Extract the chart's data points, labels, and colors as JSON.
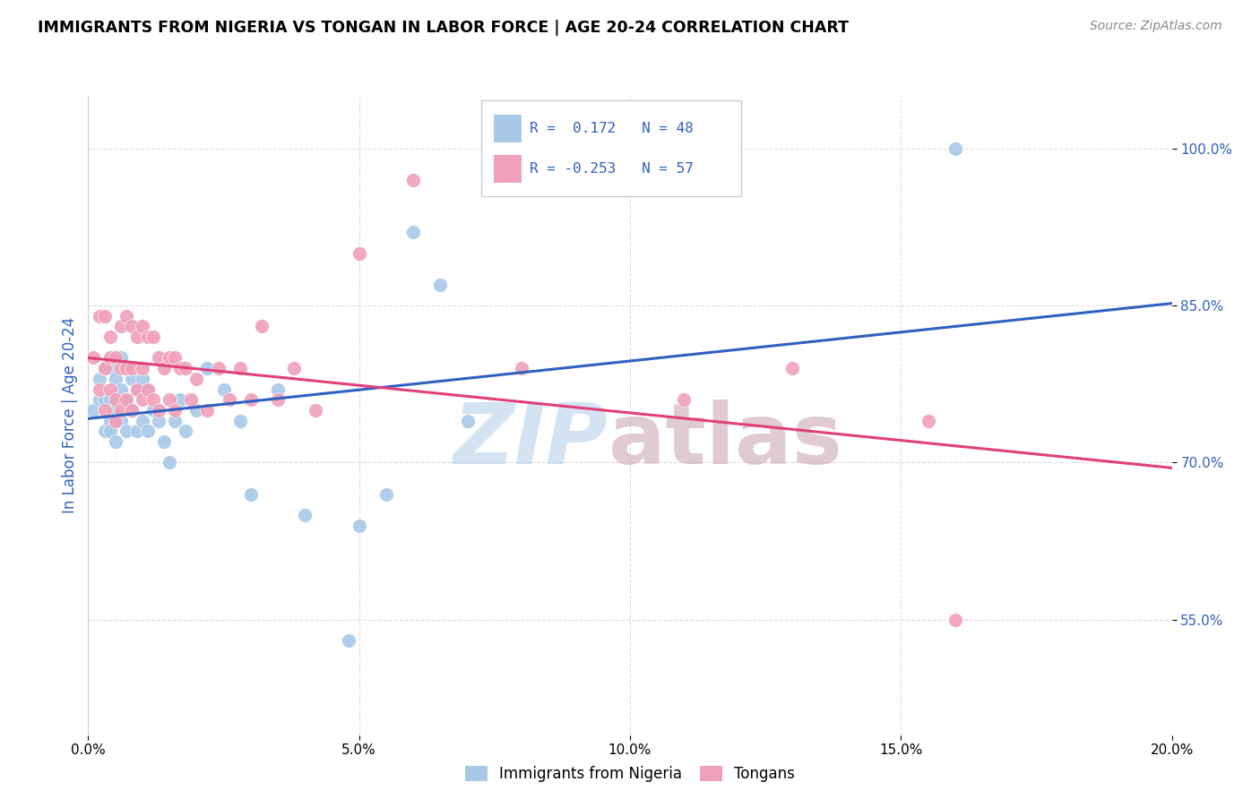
{
  "title": "IMMIGRANTS FROM NIGERIA VS TONGAN IN LABOR FORCE | AGE 20-24 CORRELATION CHART",
  "source": "Source: ZipAtlas.com",
  "ylabel": "In Labor Force | Age 20-24",
  "ylabel_ticks": [
    "55.0%",
    "70.0%",
    "85.0%",
    "100.0%"
  ],
  "ylabel_tick_vals": [
    0.55,
    0.7,
    0.85,
    1.0
  ],
  "xmin": 0.0,
  "xmax": 0.2,
  "ymin": 0.44,
  "ymax": 1.05,
  "legend_R_nigeria": "0.172",
  "legend_N_nigeria": "48",
  "legend_R_tongan": "-0.253",
  "legend_N_tongan": "57",
  "color_nigeria": "#a8c8e8",
  "color_tongan": "#f0a0b8",
  "color_line_nigeria": "#3060c0",
  "color_line_tongan": "#e0407a",
  "color_blue": "#3060c0",
  "nigeria_line_x": [
    0.0,
    0.2
  ],
  "nigeria_line_y": [
    0.742,
    0.852
  ],
  "tongan_line_x": [
    0.0,
    0.2
  ],
  "tongan_line_y": [
    0.8,
    0.695
  ],
  "nigeria_x": [
    0.001,
    0.002,
    0.002,
    0.003,
    0.003,
    0.003,
    0.004,
    0.004,
    0.004,
    0.004,
    0.005,
    0.005,
    0.005,
    0.006,
    0.006,
    0.006,
    0.007,
    0.007,
    0.007,
    0.008,
    0.008,
    0.009,
    0.009,
    0.01,
    0.01,
    0.011,
    0.011,
    0.012,
    0.013,
    0.014,
    0.015,
    0.016,
    0.017,
    0.018,
    0.02,
    0.022,
    0.025,
    0.028,
    0.03,
    0.035,
    0.04,
    0.048,
    0.05,
    0.055,
    0.06,
    0.07,
    0.065,
    0.16
  ],
  "nigeria_y": [
    0.75,
    0.76,
    0.78,
    0.73,
    0.76,
    0.79,
    0.74,
    0.76,
    0.73,
    0.79,
    0.72,
    0.75,
    0.78,
    0.74,
    0.77,
    0.8,
    0.73,
    0.76,
    0.79,
    0.75,
    0.78,
    0.73,
    0.77,
    0.74,
    0.78,
    0.73,
    0.77,
    0.75,
    0.74,
    0.72,
    0.7,
    0.74,
    0.76,
    0.73,
    0.75,
    0.79,
    0.77,
    0.74,
    0.67,
    0.77,
    0.65,
    0.53,
    0.64,
    0.67,
    0.92,
    0.74,
    0.87,
    1.0
  ],
  "tongan_x": [
    0.001,
    0.002,
    0.002,
    0.003,
    0.003,
    0.003,
    0.004,
    0.004,
    0.004,
    0.005,
    0.005,
    0.005,
    0.006,
    0.006,
    0.006,
    0.007,
    0.007,
    0.007,
    0.008,
    0.008,
    0.008,
    0.009,
    0.009,
    0.01,
    0.01,
    0.01,
    0.011,
    0.011,
    0.012,
    0.012,
    0.013,
    0.013,
    0.014,
    0.015,
    0.015,
    0.016,
    0.016,
    0.017,
    0.018,
    0.019,
    0.02,
    0.022,
    0.024,
    0.026,
    0.028,
    0.03,
    0.032,
    0.035,
    0.038,
    0.042,
    0.05,
    0.06,
    0.08,
    0.11,
    0.13,
    0.155,
    0.16
  ],
  "tongan_y": [
    0.8,
    0.84,
    0.77,
    0.84,
    0.79,
    0.75,
    0.8,
    0.77,
    0.82,
    0.8,
    0.76,
    0.74,
    0.83,
    0.79,
    0.75,
    0.84,
    0.79,
    0.76,
    0.83,
    0.79,
    0.75,
    0.82,
    0.77,
    0.83,
    0.79,
    0.76,
    0.82,
    0.77,
    0.82,
    0.76,
    0.8,
    0.75,
    0.79,
    0.8,
    0.76,
    0.8,
    0.75,
    0.79,
    0.79,
    0.76,
    0.78,
    0.75,
    0.79,
    0.76,
    0.79,
    0.76,
    0.83,
    0.76,
    0.79,
    0.75,
    0.9,
    0.97,
    0.79,
    0.76,
    0.79,
    0.74,
    0.55
  ],
  "watermark_zip_color": "#b0cce8",
  "watermark_atlas_color": "#c8a0b0"
}
